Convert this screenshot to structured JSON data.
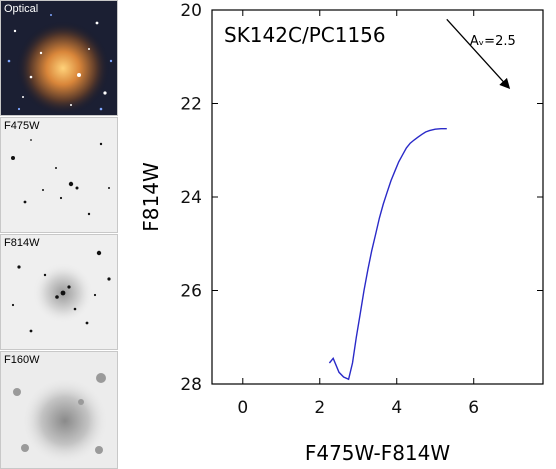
{
  "panels": [
    {
      "label": "Optical"
    },
    {
      "label": "F475W"
    },
    {
      "label": "F814W"
    },
    {
      "label": "F160W"
    }
  ],
  "chart_data": {
    "type": "scatter",
    "title": "SK142C/PC1156",
    "xlabel": "F475W-F814W",
    "ylabel": "F814W",
    "xlim": [
      -0.8,
      7.8
    ],
    "ylim": [
      28,
      20
    ],
    "y_inverted": true,
    "xticks": [
      0,
      2,
      4,
      6
    ],
    "yticks": [
      20,
      22,
      24,
      26,
      28
    ],
    "grid": false,
    "reddening_vector": {
      "label": "Aᵥ=2.5",
      "from": [
        5.3,
        20.2
      ],
      "to": [
        6.9,
        21.65
      ]
    },
    "points_marker": "open-circle",
    "points": [],
    "isochrone": {
      "color": "#2a2ac8",
      "x": [
        2.25,
        2.35,
        2.5,
        2.62,
        2.75,
        2.85,
        2.95,
        3.05,
        3.15,
        3.25,
        3.35,
        3.45,
        3.55,
        3.65,
        3.75,
        3.85,
        3.95,
        4.05,
        4.15,
        4.25,
        4.35,
        4.45,
        4.55,
        4.65,
        4.75,
        4.85,
        5.0,
        5.15,
        5.3
      ],
      "y": [
        27.55,
        27.45,
        27.75,
        27.85,
        27.9,
        27.55,
        27.0,
        26.5,
        26.0,
        25.55,
        25.15,
        24.8,
        24.45,
        24.15,
        23.9,
        23.65,
        23.45,
        23.25,
        23.1,
        22.95,
        22.85,
        22.78,
        22.72,
        22.66,
        22.61,
        22.58,
        22.55,
        22.54,
        22.54
      ]
    }
  }
}
